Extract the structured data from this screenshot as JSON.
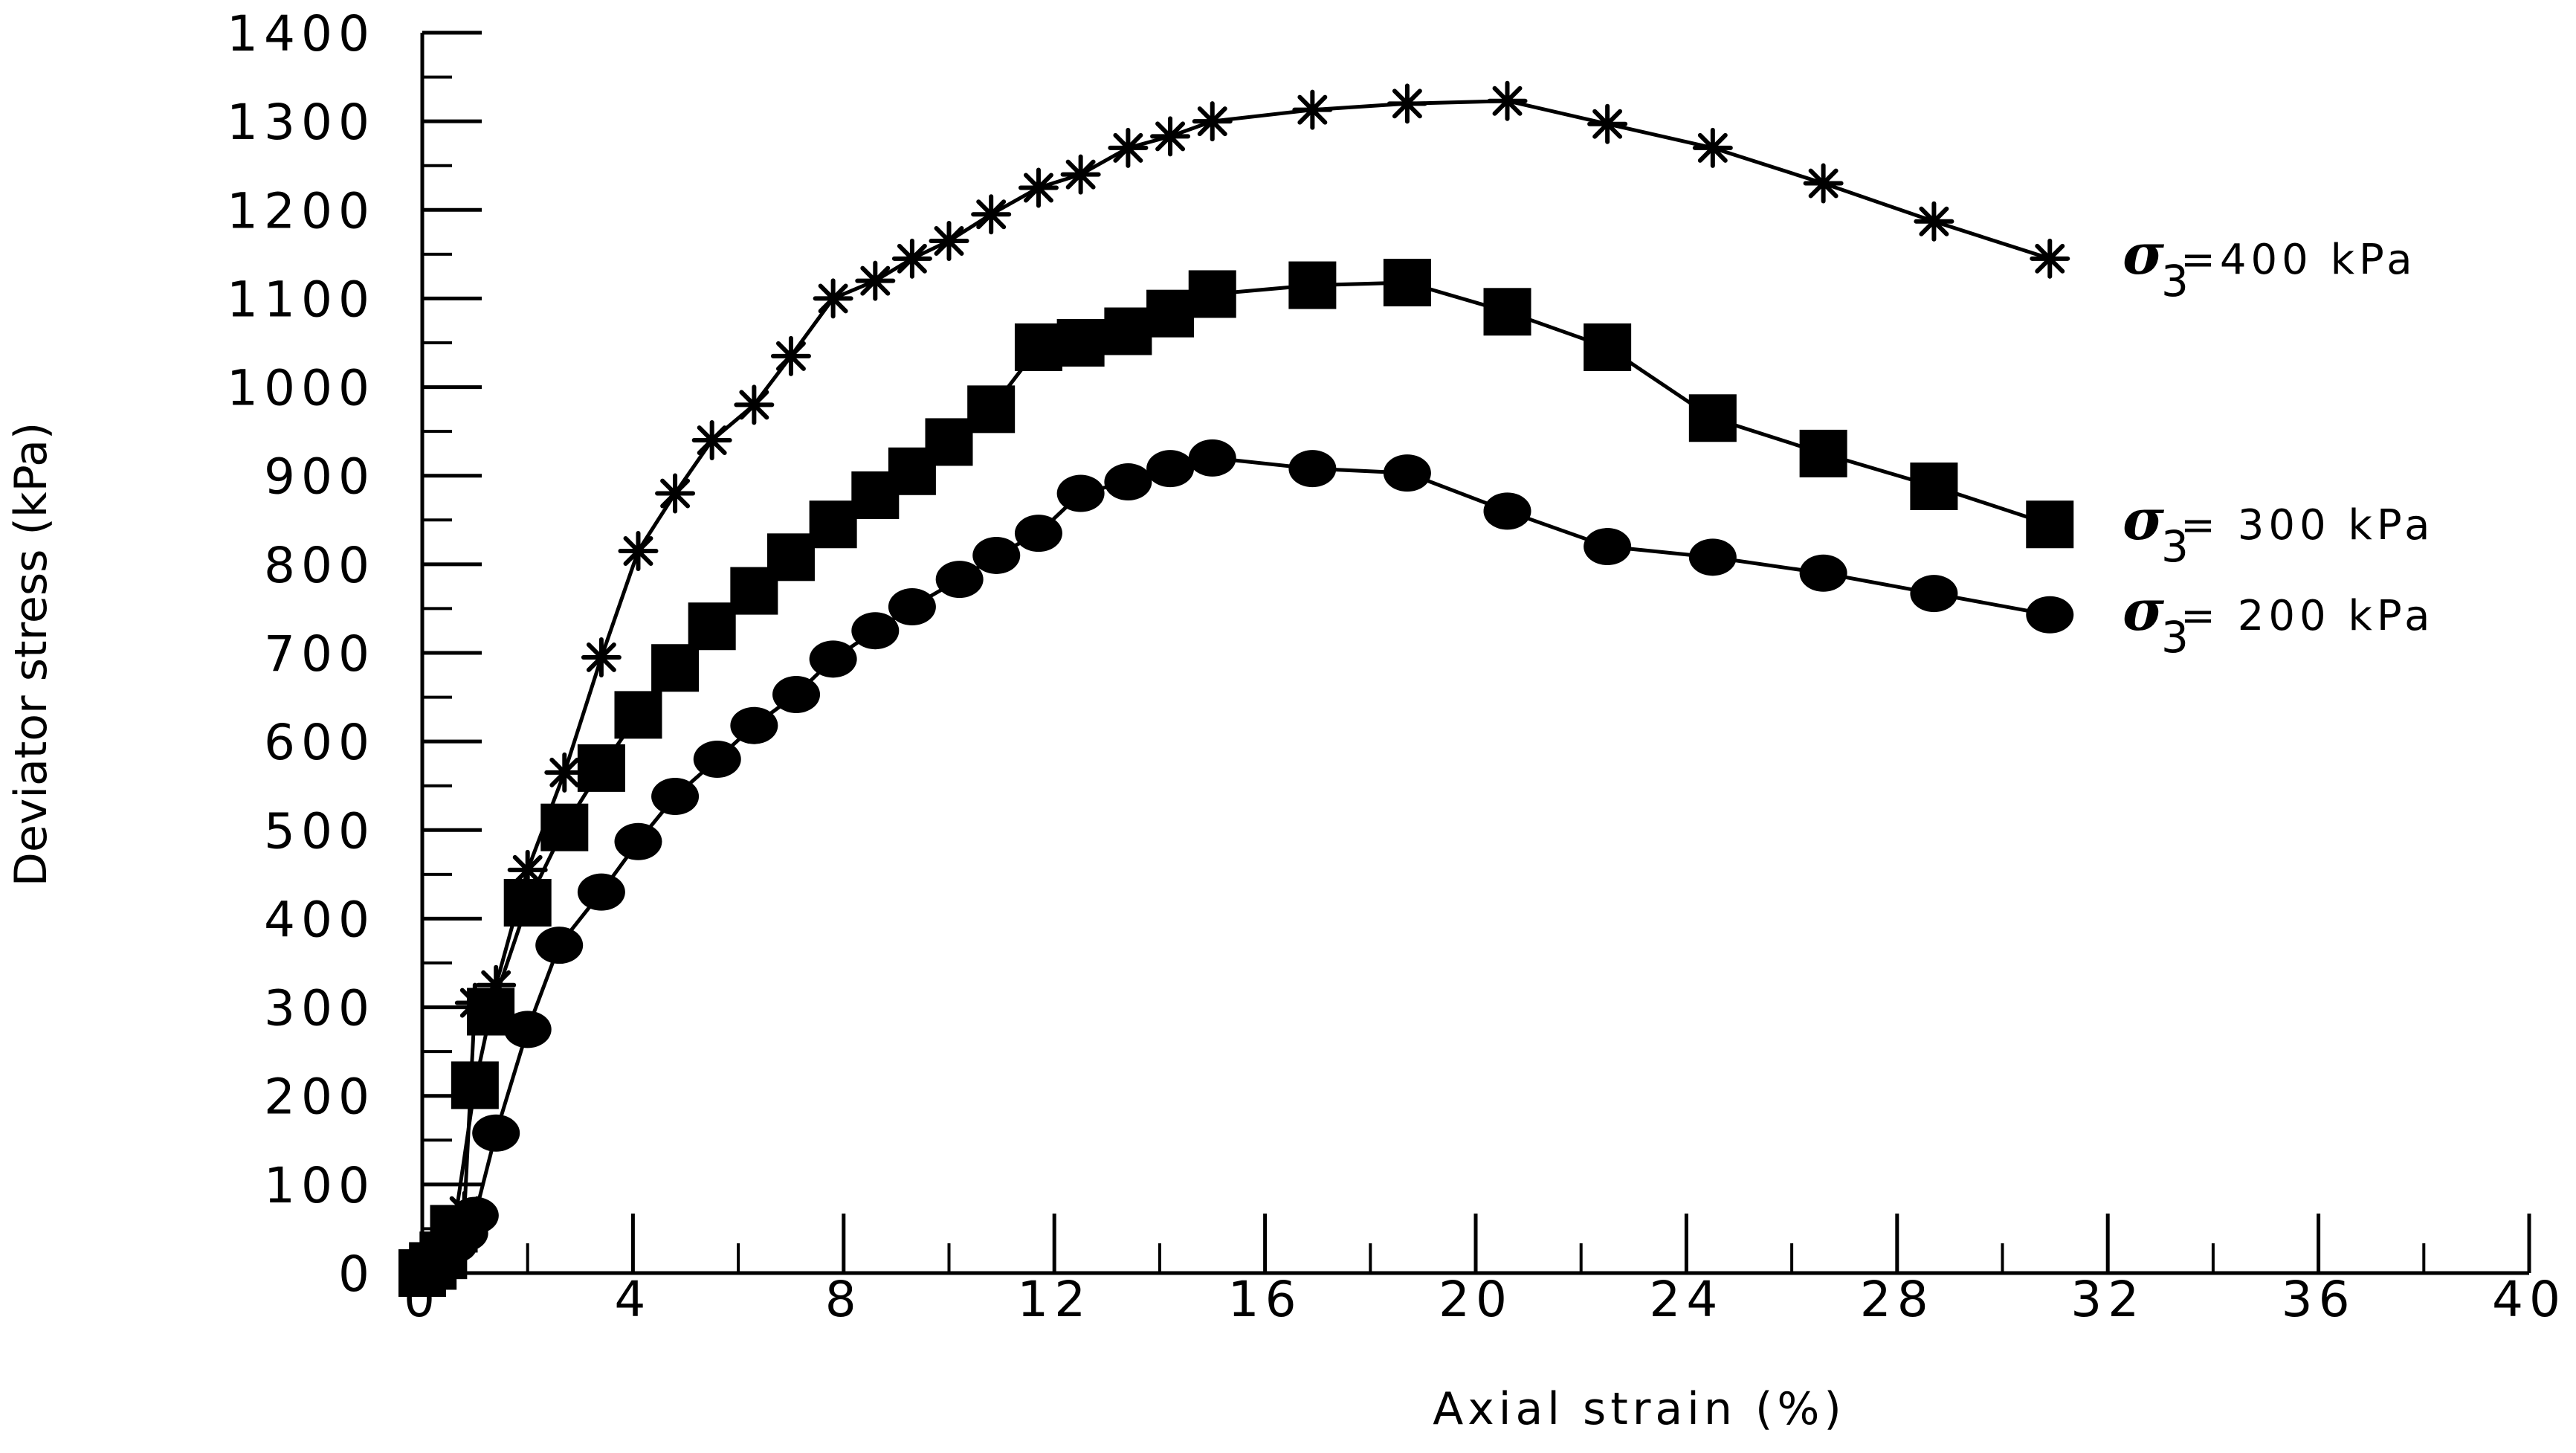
{
  "chart_data": {
    "type": "line",
    "xlabel": "Axial strain (%)",
    "ylabel": "Deviator stress (kPa)",
    "xlim": [
      0,
      40
    ],
    "ylim": [
      0,
      1400
    ],
    "xticks": [
      0,
      4,
      8,
      12,
      16,
      20,
      24,
      28,
      32,
      36,
      40
    ],
    "yticks": [
      0,
      100,
      200,
      300,
      400,
      500,
      600,
      700,
      800,
      900,
      1000,
      1100,
      1200,
      1300,
      1400
    ],
    "grid": false,
    "legend": "inline labels at right end of each series",
    "series": [
      {
        "name": "σ3=400 kPa",
        "label_main": "=400 kPa",
        "marker": "star",
        "x": [
          0,
          0.2,
          0.4,
          0.6,
          0.8,
          1.0,
          1.4,
          2.0,
          2.7,
          3.4,
          4.1,
          4.8,
          5.5,
          6.3,
          7.0,
          7.8,
          8.6,
          9.3,
          10.0,
          10.8,
          11.7,
          12.5,
          13.4,
          14.2,
          15.0,
          16.9,
          18.7,
          20.6,
          22.5,
          24.5,
          26.6,
          28.7,
          30.9
        ],
        "y": [
          0,
          12,
          25,
          45,
          70,
          305,
          325,
          455,
          565,
          695,
          815,
          880,
          940,
          980,
          1035,
          1100,
          1120,
          1145,
          1165,
          1195,
          1225,
          1240,
          1270,
          1283,
          1300,
          1313,
          1320,
          1323,
          1297,
          1270,
          1230,
          1187,
          1145
        ]
      },
      {
        "name": "σ3= 300 kPa",
        "label_main": "= 300 kPa",
        "marker": "square",
        "x": [
          0,
          0.2,
          0.4,
          0.6,
          1.0,
          1.3,
          2.0,
          2.7,
          3.4,
          4.1,
          4.8,
          5.5,
          6.3,
          7.0,
          7.8,
          8.6,
          9.3,
          10.0,
          10.8,
          11.7,
          12.5,
          13.4,
          14.2,
          15.0,
          16.9,
          18.7,
          20.6,
          22.5,
          24.5,
          26.6,
          28.7,
          30.9
        ],
        "y": [
          0,
          8,
          20,
          50,
          212,
          295,
          418,
          503,
          570,
          630,
          683,
          730,
          770,
          808,
          845,
          878,
          905,
          938,
          975,
          1045,
          1050,
          1063,
          1083,
          1105,
          1115,
          1118,
          1085,
          1045,
          965,
          925,
          888,
          845
        ]
      },
      {
        "name": "σ3= 200 kPa",
        "label_main": "= 200 kPa",
        "marker": "circle",
        "x": [
          0,
          0.2,
          0.4,
          0.6,
          0.8,
          1.0,
          1.4,
          2.0,
          2.6,
          3.4,
          4.1,
          4.8,
          5.6,
          6.3,
          7.1,
          7.8,
          8.6,
          9.3,
          10.2,
          10.9,
          11.7,
          12.5,
          13.4,
          14.2,
          15.0,
          16.9,
          18.7,
          20.6,
          22.5,
          24.5,
          26.6,
          28.7,
          30.9
        ],
        "y": [
          0,
          12,
          20,
          32,
          45,
          65,
          158,
          275,
          370,
          430,
          487,
          538,
          580,
          618,
          653,
          693,
          725,
          752,
          783,
          810,
          835,
          880,
          893,
          908,
          920,
          908,
          903,
          860,
          820,
          808,
          790,
          767,
          743
        ]
      }
    ],
    "sigma_symbol": "σ",
    "sigma_subscript": "3"
  }
}
